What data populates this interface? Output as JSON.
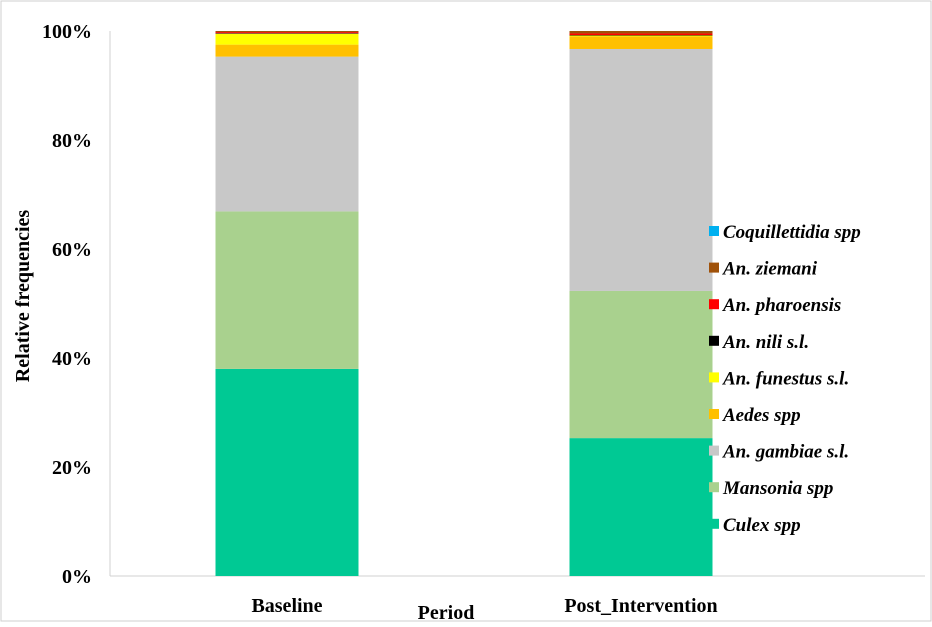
{
  "chart_data": {
    "type": "bar",
    "stacked": true,
    "percent": true,
    "categories": [
      "Baseline",
      "Post_Intervention"
    ],
    "xlabel": "Period",
    "ylabel": "Relative frequencies",
    "ylim": [
      0,
      100
    ],
    "y_ticks": [
      "0%",
      "20%",
      "40%",
      "60%",
      "80%",
      "100%"
    ],
    "legend_position": "right",
    "series": [
      {
        "name": "Culex spp",
        "color": "#00C994",
        "values": [
          38.0,
          25.3
        ]
      },
      {
        "name": "Mansonia spp",
        "color": "#A9D18E",
        "values": [
          28.9,
          27.0
        ]
      },
      {
        "name": "An. gambiae s.l.",
        "color": "#C8C8C8",
        "values": [
          28.4,
          44.4
        ]
      },
      {
        "name": "Aedes spp",
        "color": "#FFC000",
        "values": [
          2.2,
          2.3
        ]
      },
      {
        "name": "An. funestus s.l.",
        "color": "#FFFF00",
        "values": [
          2.0,
          0.2
        ]
      },
      {
        "name": "An. nili s.l.",
        "color": "#000000",
        "values": [
          0.1,
          0.05
        ]
      },
      {
        "name": "An. pharoensis",
        "color": "#FF0000",
        "values": [
          0.2,
          0.3
        ]
      },
      {
        "name": "An. ziemani",
        "color": "#A0520A",
        "values": [
          0.2,
          0.45
        ]
      },
      {
        "name": "Coquillettidia spp",
        "color": "#00B0F0",
        "values": [
          0.0,
          0.0
        ]
      }
    ]
  }
}
